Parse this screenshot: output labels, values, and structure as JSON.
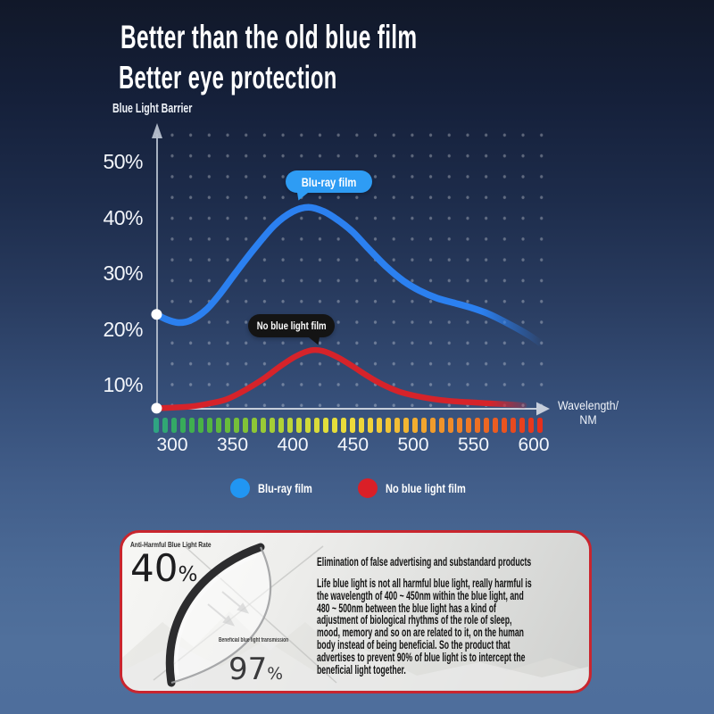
{
  "header": {
    "line1": "Better than the old blue film",
    "line2": "Better eye protection"
  },
  "chart": {
    "y_axis_title": "Blue Light Barrier",
    "x_axis_title_line1": "Wavelength/",
    "x_axis_title_line2": "NM",
    "y_ticks": [
      "50%",
      "40%",
      "30%",
      "20%",
      "10%"
    ],
    "x_ticks": [
      "300",
      "350",
      "400",
      "450",
      "500",
      "550",
      "600"
    ],
    "tooltips": [
      {
        "label": "Blu-ray film",
        "color": "#2e9cf4"
      },
      {
        "label": "No blue light film",
        "color": "#141414"
      }
    ],
    "legend": [
      {
        "label": "Blu-ray film",
        "color": "#2196f3"
      },
      {
        "label": "No blue light film",
        "color": "#da1f27"
      }
    ],
    "spectrum_colors": [
      "#2fa482",
      "#35ab5c",
      "#4cb441",
      "#69bd3a",
      "#8ac636",
      "#abd036",
      "#c9d838",
      "#e0de3b",
      "#ecdc3b",
      "#f0d139",
      "#f2bf35",
      "#f2a92f",
      "#f0912a",
      "#ee7a26",
      "#ec6122",
      "#e8471f",
      "#e5301c"
    ]
  },
  "chart_data": {
    "type": "line",
    "title": "",
    "xlabel": "Wavelength/NM",
    "ylabel": "Blue Light Barrier",
    "x_range": [
      300,
      600
    ],
    "ylim_pct": [
      5,
      55
    ],
    "y_tick_values_pct": [
      10,
      20,
      30,
      40,
      50
    ],
    "grid": "dotted",
    "legend_position": "bottom-center",
    "series": [
      {
        "name": "Blu-ray film",
        "color": "#2b80f0",
        "points": [
          [
            287,
            22.7
          ],
          [
            295,
            21.8
          ],
          [
            305,
            21.2
          ],
          [
            315,
            21.6
          ],
          [
            328,
            23.5
          ],
          [
            340,
            26.5
          ],
          [
            352,
            30.0
          ],
          [
            368,
            34.5
          ],
          [
            385,
            38.8
          ],
          [
            400,
            41.2
          ],
          [
            413,
            42.0
          ],
          [
            426,
            41.2
          ],
          [
            438,
            39.6
          ],
          [
            450,
            37.5
          ],
          [
            463,
            34.5
          ],
          [
            478,
            31.2
          ],
          [
            492,
            28.7
          ],
          [
            505,
            27.0
          ],
          [
            520,
            25.6
          ],
          [
            535,
            24.7
          ],
          [
            548,
            23.9
          ],
          [
            560,
            23.0
          ],
          [
            572,
            21.8
          ],
          [
            585,
            20.3
          ],
          [
            597,
            18.8
          ],
          [
            605,
            17.6
          ]
        ]
      },
      {
        "name": "No blue light film",
        "color": "#d6232a",
        "points": [
          [
            287,
            5.8
          ],
          [
            300,
            5.9
          ],
          [
            315,
            6.1
          ],
          [
            330,
            6.6
          ],
          [
            345,
            7.4
          ],
          [
            360,
            9.0
          ],
          [
            375,
            11.0
          ],
          [
            390,
            13.4
          ],
          [
            403,
            15.2
          ],
          [
            415,
            16.2
          ],
          [
            425,
            16.1
          ],
          [
            437,
            15.0
          ],
          [
            450,
            13.3
          ],
          [
            462,
            11.6
          ],
          [
            475,
            10.0
          ],
          [
            488,
            8.8
          ],
          [
            500,
            8.1
          ],
          [
            515,
            7.5
          ],
          [
            530,
            7.1
          ],
          [
            545,
            6.9
          ],
          [
            560,
            6.7
          ],
          [
            578,
            6.5
          ],
          [
            592,
            6.3
          ]
        ]
      }
    ]
  },
  "panel": {
    "anti_label": "Anti-Harmful Blue Light Rate",
    "anti_value": "40",
    "anti_unit": "%",
    "beneficial_label": "Beneficial blue light transmission",
    "beneficial_value": "97",
    "beneficial_unit": "%",
    "info_title": "Elimination of false advertising and substandard products",
    "info_body_lines": [
      "Life blue light is not all harmful blue light, really harmful is",
      "the wavelength of 400 ~ 450nm within the blue light, and",
      "480 ~ 500nm between the blue light has a kind of",
      "adjustment of biological rhythms of the role of sleep,",
      "mood, memory and so on are related to it, on the human",
      "body instead of being beneficial. So the product that",
      "advertises to prevent 90% of blue light is to intercept the",
      "beneficial light together."
    ]
  }
}
